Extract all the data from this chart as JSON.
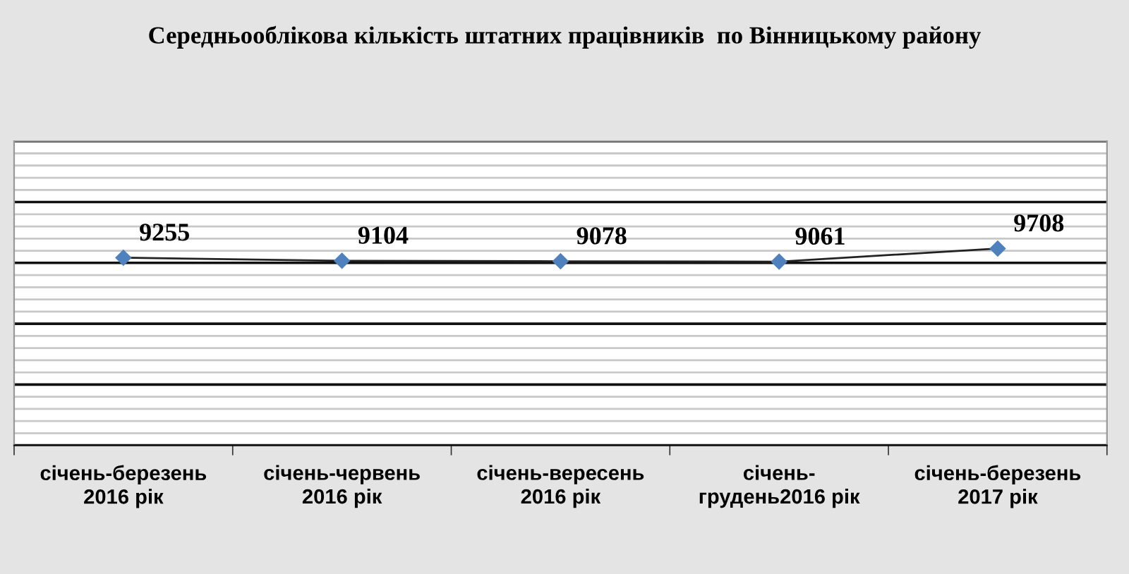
{
  "chart_data": {
    "type": "line",
    "title": "Середньооблікова кількість штатних працівників  по Вінницькому району",
    "categories": [
      "січень-березень\n2016 рік",
      "січень-червень\n2016 рік",
      "січень-вересень\n2016 рік",
      "січень-\nгрудень2016 рік",
      "січень-березень\n2017 рік"
    ],
    "series": [
      {
        "color": "#4f81bd",
        "values": [
          9255,
          9104,
          9078,
          9061,
          9708
        ]
      }
    ],
    "ylim": [
      0,
      15000
    ],
    "yticks": [
      {
        "value": 0,
        "label": null
      },
      {
        "value": 600,
        "label": null
      },
      {
        "value": 1200,
        "label": null
      },
      {
        "value": 1800,
        "label": null
      },
      {
        "value": 2400,
        "label": null
      },
      {
        "value": 3000,
        "label": null
      },
      {
        "value": 3600,
        "label": null
      },
      {
        "value": 4200,
        "label": null
      },
      {
        "value": 4800,
        "label": null
      },
      {
        "value": 5400,
        "label": null
      },
      {
        "value": 6000,
        "label": null
      },
      {
        "value": 6600,
        "label": null
      },
      {
        "value": 7200,
        "label": null
      },
      {
        "value": 7800,
        "label": null
      },
      {
        "value": 8400,
        "label": null
      },
      {
        "value": 9000,
        "label": null
      },
      {
        "value": 9600,
        "label": null
      },
      {
        "value": 10200,
        "label": null
      },
      {
        "value": 10800,
        "label": null
      },
      {
        "value": 11400,
        "label": null
      },
      {
        "value": 12000,
        "label": null
      },
      {
        "value": 12600,
        "label": null
      },
      {
        "value": 13200,
        "label": null
      },
      {
        "value": 13800,
        "label": null
      },
      {
        "value": 14400,
        "label": null
      },
      {
        "value": 15000,
        "label": null
      }
    ],
    "tick_labels": "x",
    "grid": "y",
    "marker": "diamond",
    "line_style": "solid",
    "data_labels": true
  }
}
